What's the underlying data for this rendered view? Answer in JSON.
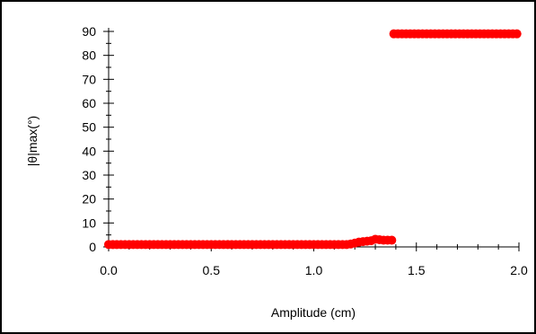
{
  "chart_data": {
    "type": "scatter",
    "title": "",
    "xlabel": "Amplitude (cm)",
    "ylabel": "|θ|max(°)",
    "xlim": [
      0,
      2
    ],
    "ylim": [
      0,
      90
    ],
    "xticks": [
      "0.0",
      "0.5",
      "1.0",
      "1.5",
      "2.0"
    ],
    "yticks": [
      "0",
      "10",
      "20",
      "30",
      "40",
      "50",
      "60",
      "70",
      "80",
      "90"
    ],
    "grid": false,
    "legend": "none",
    "marker_color": "#ff0000",
    "series": [
      {
        "points": [
          [
            0.0,
            1.0
          ],
          [
            0.02,
            1.0
          ],
          [
            0.04,
            1.0
          ],
          [
            0.06,
            1.0
          ],
          [
            0.08,
            1.0
          ],
          [
            0.1,
            1.0
          ],
          [
            0.12,
            1.0
          ],
          [
            0.14,
            1.0
          ],
          [
            0.16,
            1.0
          ],
          [
            0.18,
            1.0
          ],
          [
            0.2,
            1.0
          ],
          [
            0.22,
            1.0
          ],
          [
            0.24,
            1.0
          ],
          [
            0.26,
            1.0
          ],
          [
            0.28,
            1.0
          ],
          [
            0.3,
            1.0
          ],
          [
            0.32,
            1.0
          ],
          [
            0.34,
            1.0
          ],
          [
            0.36,
            1.0
          ],
          [
            0.38,
            1.0
          ],
          [
            0.4,
            1.0
          ],
          [
            0.42,
            1.0
          ],
          [
            0.44,
            1.0
          ],
          [
            0.46,
            1.0
          ],
          [
            0.48,
            1.0
          ],
          [
            0.5,
            1.0
          ],
          [
            0.52,
            1.0
          ],
          [
            0.54,
            1.0
          ],
          [
            0.56,
            1.0
          ],
          [
            0.58,
            1.0
          ],
          [
            0.6,
            1.0
          ],
          [
            0.62,
            1.0
          ],
          [
            0.64,
            1.0
          ],
          [
            0.66,
            1.0
          ],
          [
            0.68,
            1.0
          ],
          [
            0.7,
            1.0
          ],
          [
            0.72,
            1.0
          ],
          [
            0.74,
            1.0
          ],
          [
            0.76,
            1.0
          ],
          [
            0.78,
            1.0
          ],
          [
            0.8,
            1.0
          ],
          [
            0.82,
            1.0
          ],
          [
            0.84,
            1.0
          ],
          [
            0.86,
            1.0
          ],
          [
            0.88,
            1.0
          ],
          [
            0.9,
            1.0
          ],
          [
            0.92,
            1.0
          ],
          [
            0.94,
            1.0
          ],
          [
            0.96,
            1.0
          ],
          [
            0.98,
            1.0
          ],
          [
            1.0,
            1.0
          ],
          [
            1.02,
            1.0
          ],
          [
            1.04,
            1.0
          ],
          [
            1.06,
            1.0
          ],
          [
            1.08,
            1.0
          ],
          [
            1.1,
            1.0
          ],
          [
            1.12,
            1.0
          ],
          [
            1.14,
            1.0
          ],
          [
            1.16,
            1.0
          ],
          [
            1.18,
            1.2
          ],
          [
            1.2,
            1.6
          ],
          [
            1.22,
            2.0
          ],
          [
            1.24,
            2.2
          ],
          [
            1.26,
            2.4
          ],
          [
            1.28,
            2.6
          ],
          [
            1.3,
            3.2
          ],
          [
            1.32,
            3.0
          ],
          [
            1.34,
            2.8
          ],
          [
            1.36,
            2.8
          ],
          [
            1.38,
            2.8
          ],
          [
            1.39,
            89.0
          ],
          [
            1.41,
            89.0
          ],
          [
            1.43,
            89.0
          ],
          [
            1.45,
            89.0
          ],
          [
            1.47,
            89.0
          ],
          [
            1.49,
            89.0
          ],
          [
            1.51,
            89.0
          ],
          [
            1.53,
            89.0
          ],
          [
            1.55,
            89.0
          ],
          [
            1.57,
            89.0
          ],
          [
            1.59,
            89.0
          ],
          [
            1.61,
            89.0
          ],
          [
            1.63,
            89.0
          ],
          [
            1.65,
            89.0
          ],
          [
            1.67,
            89.0
          ],
          [
            1.69,
            89.0
          ],
          [
            1.71,
            89.0
          ],
          [
            1.73,
            89.0
          ],
          [
            1.75,
            89.0
          ],
          [
            1.77,
            89.0
          ],
          [
            1.79,
            89.0
          ],
          [
            1.81,
            89.0
          ],
          [
            1.83,
            89.0
          ],
          [
            1.85,
            89.0
          ],
          [
            1.87,
            89.0
          ],
          [
            1.89,
            89.0
          ],
          [
            1.91,
            89.0
          ],
          [
            1.93,
            89.0
          ],
          [
            1.95,
            89.0
          ],
          [
            1.97,
            89.0
          ],
          [
            1.99,
            89.0
          ]
        ]
      }
    ]
  }
}
